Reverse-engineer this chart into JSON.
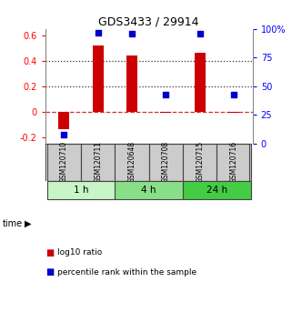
{
  "title": "GDS3433 / 29914",
  "samples": [
    "GSM120710",
    "GSM120711",
    "GSM120648",
    "GSM120708",
    "GSM120715",
    "GSM120716"
  ],
  "log10_ratio": [
    -0.14,
    0.52,
    0.44,
    -0.01,
    0.46,
    -0.01
  ],
  "percentile_rank": [
    8,
    97,
    96,
    43,
    96,
    43
  ],
  "time_groups": [
    {
      "label": "1 h",
      "samples": [
        0,
        1
      ],
      "color": "#c8f5c8"
    },
    {
      "label": "4 h",
      "samples": [
        2,
        3
      ],
      "color": "#88df88"
    },
    {
      "label": "24 h",
      "samples": [
        4,
        5
      ],
      "color": "#44cc44"
    }
  ],
  "bar_color": "#cc0000",
  "dot_color": "#0000cc",
  "ylim_left": [
    -0.25,
    0.65
  ],
  "ylim_right": [
    0,
    108.33
  ],
  "yticks_left": [
    -0.2,
    0.0,
    0.2,
    0.4,
    0.6
  ],
  "ytick_labels_left": [
    "-0.2",
    "0",
    "0.2",
    "0.4",
    "0.6"
  ],
  "yticks_right": [
    0,
    25,
    50,
    75,
    100
  ],
  "ytick_labels_right": [
    "0",
    "25",
    "50",
    "75",
    "100%"
  ],
  "hlines": [
    0.0,
    0.2,
    0.4
  ],
  "hline_styles": [
    "--",
    ":",
    ":"
  ],
  "hline_colors": [
    "#cc3333",
    "#333333",
    "#333333"
  ],
  "sample_box_color": "#cccccc",
  "sample_box_edge": "#444444",
  "legend_items": [
    {
      "label": "log10 ratio",
      "color": "#cc0000"
    },
    {
      "label": "percentile rank within the sample",
      "color": "#0000cc"
    }
  ]
}
